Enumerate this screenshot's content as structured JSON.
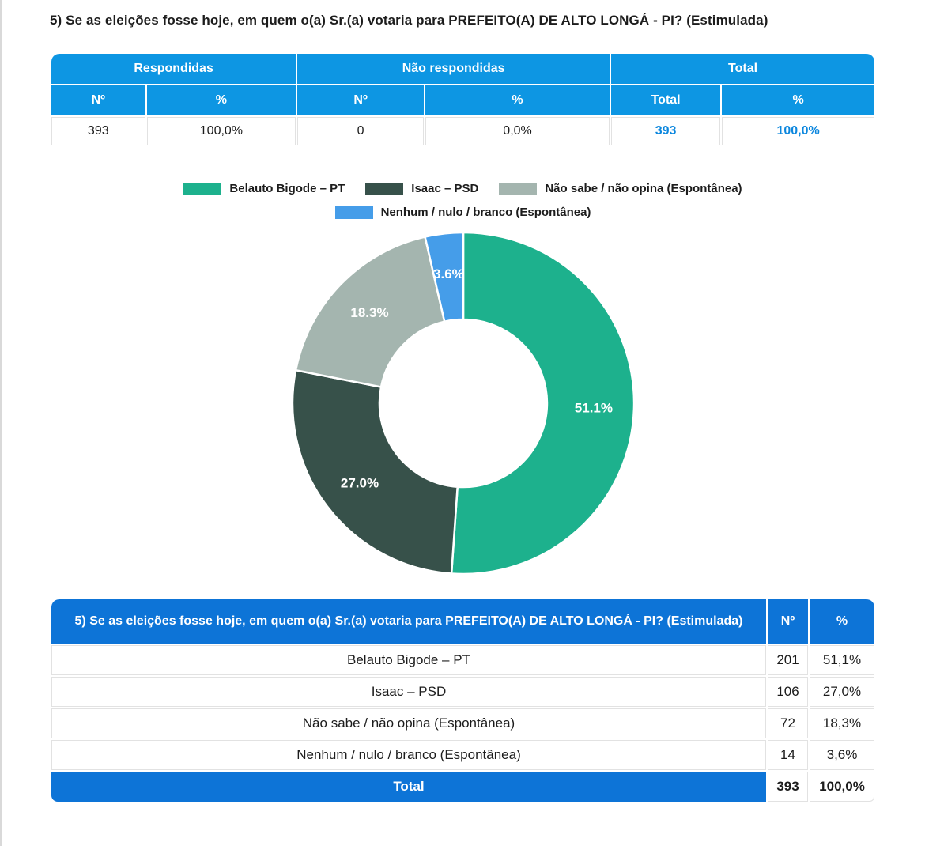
{
  "page": {
    "title": "5) Se as eleições fosse hoje, em quem o(a) Sr.(a) votaria para PREFEITO(A) DE ALTO LONGÁ - PI? (Estimulada)"
  },
  "summary_table": {
    "group_headers": [
      "Respondidas",
      "Não respondidas",
      "Total"
    ],
    "sub_headers": [
      "Nº",
      "%",
      "Nº",
      "%",
      "Total",
      "%"
    ],
    "values": [
      "393",
      "100,0%",
      "0",
      "0,0%",
      "393",
      "100,0%"
    ]
  },
  "chart_data": {
    "type": "pie",
    "donut": true,
    "title": "",
    "labels": [
      "Belauto Bigode – PT",
      "Isaac – PSD",
      "Não sabe / não opina (Espontânea)",
      "Nenhum / nulo / branco (Espontânea)"
    ],
    "values": [
      51.1,
      27.0,
      18.3,
      3.6
    ],
    "counts": [
      201,
      106,
      72,
      14
    ],
    "slice_labels": [
      "51.1%",
      "27.0%",
      "18.3%",
      "3.6%"
    ],
    "colors": [
      "#1db18d",
      "#37514a",
      "#a4b5af",
      "#459de9"
    ],
    "legend_position": "top",
    "start_angle_deg": 0,
    "direction": "clockwise",
    "inner_radius_ratio": 0.49
  },
  "results_table": {
    "question_header": "5) Se as eleições fosse hoje, em quem o(a) Sr.(a) votaria para PREFEITO(A) DE ALTO LONGÁ - PI? (Estimulada)",
    "col_n": "Nº",
    "col_pct": "%",
    "rows": [
      {
        "label": "Belauto Bigode – PT",
        "n": "201",
        "pct": "51,1%"
      },
      {
        "label": "Isaac – PSD",
        "n": "106",
        "pct": "27,0%"
      },
      {
        "label": "Não sabe / não opina (Espontânea)",
        "n": "72",
        "pct": "18,3%"
      },
      {
        "label": "Nenhum / nulo / branco (Espontânea)",
        "n": "14",
        "pct": "3,6%"
      }
    ],
    "total_row": {
      "label": "Total",
      "n": "393",
      "pct": "100,0%"
    }
  },
  "colors": {
    "header_blue": "#0d96e3",
    "accent_text_blue": "#0c87de",
    "deep_blue": "#0d74d7",
    "slice_teal": "#1db18d",
    "slice_dark_green": "#37514a",
    "slice_gray": "#a4b5af",
    "slice_blue": "#459de9"
  }
}
